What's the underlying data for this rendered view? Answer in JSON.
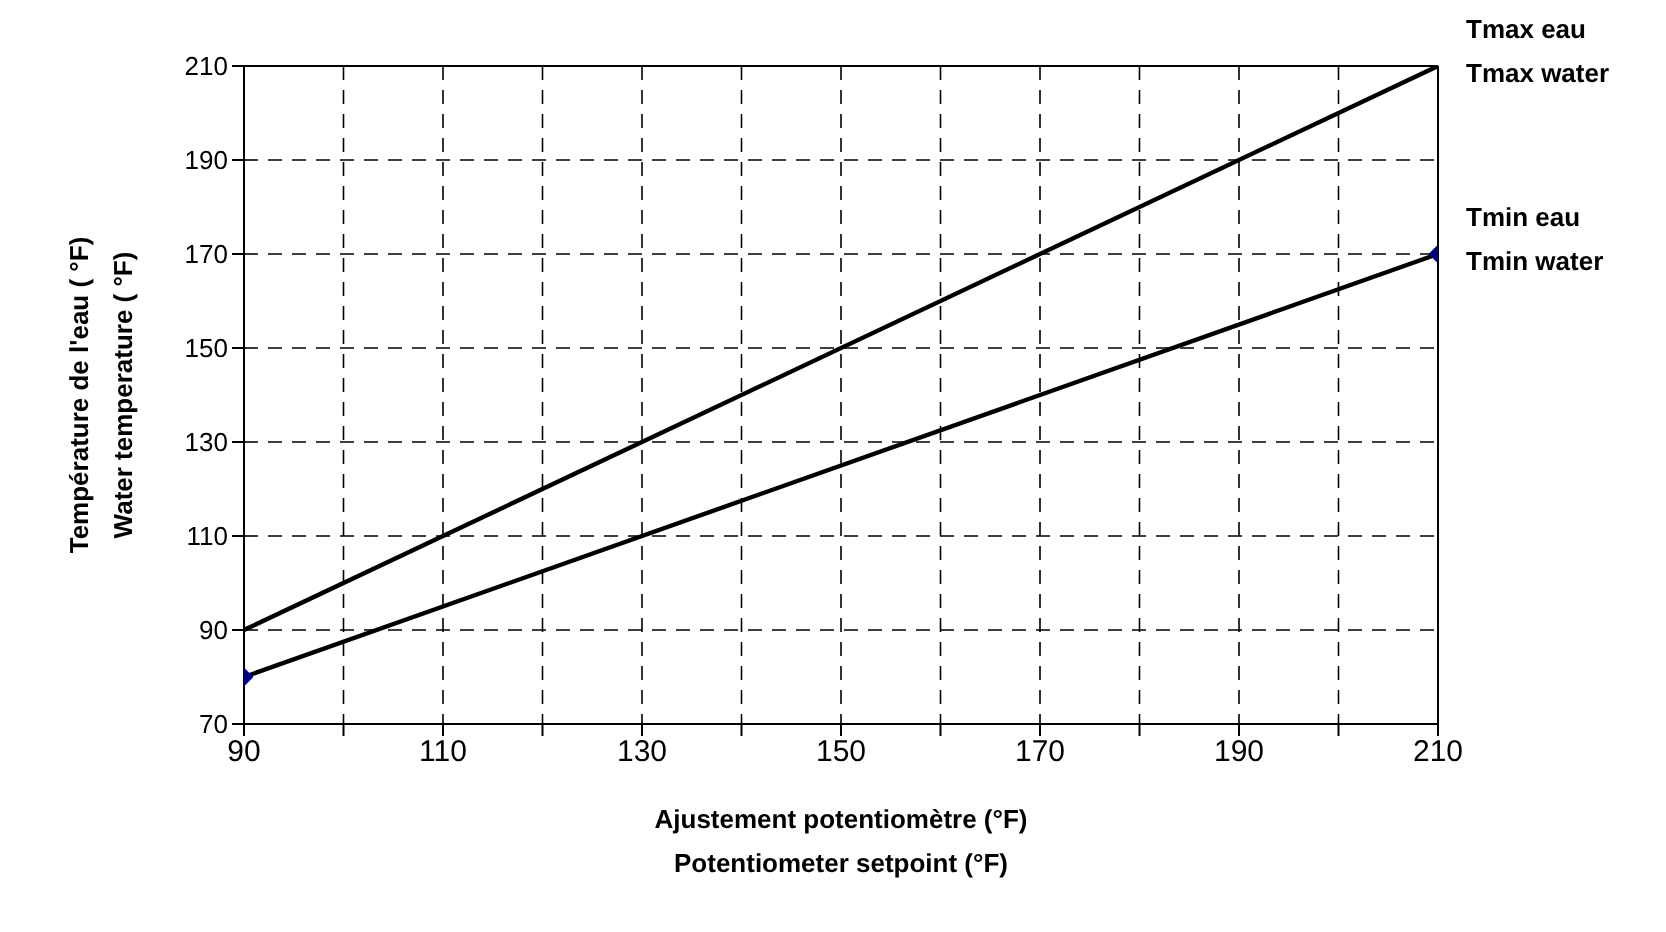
{
  "chart_data": {
    "type": "line",
    "xlabel": "Ajustement potentiomètre (°F)\nPotentiometer setpoint (°F)",
    "ylabel": "Température de l'eau ( °F)\nWater temperature ( °F)",
    "x": [
      90,
      210
    ],
    "series": [
      {
        "name": "Tmax eau\nTmax water",
        "color": "#000000",
        "values": [
          90,
          210
        ],
        "marker": "none"
      },
      {
        "name": "Tmin eau\nTmin water",
        "color": "#000000",
        "values": [
          80,
          170
        ],
        "marker": "diamond"
      }
    ],
    "xlim": [
      90,
      210
    ],
    "xticks": [
      90,
      {
        "value": 100,
        "label": null
      },
      110,
      {
        "value": 120,
        "label": null
      },
      130,
      {
        "value": 140,
        "label": null
      },
      150,
      {
        "value": 160,
        "label": null
      },
      170,
      {
        "value": 180,
        "label": null
      },
      190,
      {
        "value": 200,
        "label": null
      },
      210
    ],
    "ylim": [
      70,
      210
    ],
    "yticks": [
      70,
      90,
      110,
      130,
      150,
      170,
      190,
      210
    ],
    "grid": true,
    "line_style": "solid"
  }
}
